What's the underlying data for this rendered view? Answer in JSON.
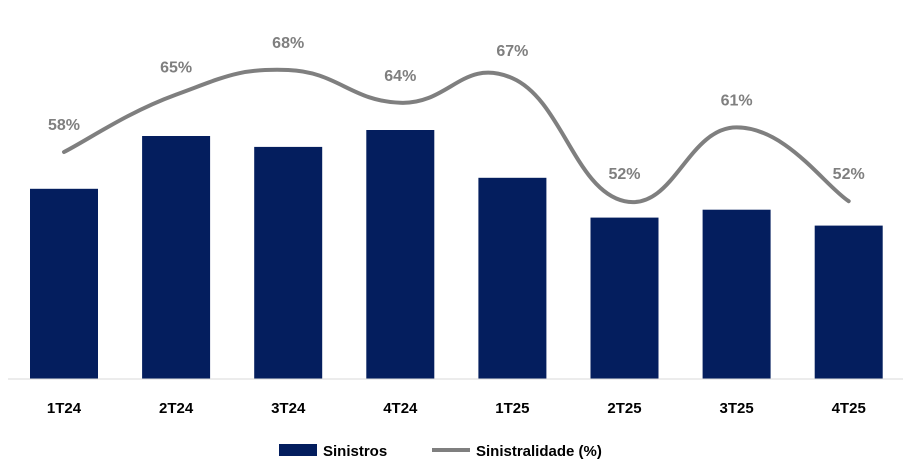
{
  "chart_data": {
    "type": "bar",
    "categories": [
      "1T24",
      "2T24",
      "3T24",
      "4T24",
      "1T25",
      "2T25",
      "3T25",
      "4T25"
    ],
    "series": [
      {
        "name": "Sinistros",
        "type": "bar",
        "color": "#041E5E",
        "values": [
          191,
          244,
          233,
          250,
          202,
          162,
          170,
          154
        ]
      },
      {
        "name": "Sinistralidade (%)",
        "type": "line",
        "color": "#7F7F7F",
        "values": [
          58,
          65,
          68,
          64,
          67,
          52,
          61,
          52
        ],
        "labels": [
          "58%",
          "65%",
          "68%",
          "64%",
          "67%",
          "52%",
          "61%",
          "52%"
        ]
      }
    ],
    "legend": {
      "position": "bottom",
      "items": [
        "Sinistros",
        "Sinistralidade (%)"
      ]
    },
    "grid": false
  }
}
